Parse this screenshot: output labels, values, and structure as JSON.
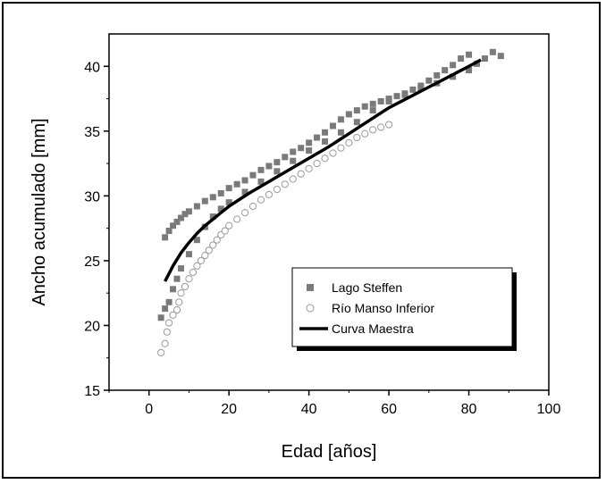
{
  "chart_data": {
    "type": "scatter",
    "title": "",
    "xlabel": "Edad [años]",
    "ylabel": "Ancho acumulado [mm]",
    "xlim": [
      -10,
      100
    ],
    "ylim": [
      15,
      42.5
    ],
    "xticks": [
      0,
      20,
      40,
      60,
      80,
      100
    ],
    "yticks": [
      15,
      20,
      25,
      30,
      35,
      40
    ],
    "grid": false,
    "legend_position": "lower-right",
    "series": [
      {
        "name": "Lago Steffen",
        "marker": "square",
        "color": "#7a7a7a",
        "points": [
          [
            3,
            20.6
          ],
          [
            4,
            21.3
          ],
          [
            5,
            21.8
          ],
          [
            6,
            22.8
          ],
          [
            7,
            23.6
          ],
          [
            8,
            24.4
          ],
          [
            4,
            26.8
          ],
          [
            5,
            27.3
          ],
          [
            6,
            27.7
          ],
          [
            7,
            28.0
          ],
          [
            8,
            28.3
          ],
          [
            9,
            28.6
          ],
          [
            10,
            28.8
          ],
          [
            12,
            29.2
          ],
          [
            14,
            29.6
          ],
          [
            16,
            29.9
          ],
          [
            18,
            30.2
          ],
          [
            20,
            30.6
          ],
          [
            22,
            30.9
          ],
          [
            24,
            31.2
          ],
          [
            26,
            31.6
          ],
          [
            28,
            32.0
          ],
          [
            30,
            32.3
          ],
          [
            32,
            32.6
          ],
          [
            34,
            33.0
          ],
          [
            36,
            33.4
          ],
          [
            38,
            33.7
          ],
          [
            40,
            34.1
          ],
          [
            42,
            34.5
          ],
          [
            44,
            34.9
          ],
          [
            46,
            35.4
          ],
          [
            48,
            35.9
          ],
          [
            50,
            36.3
          ],
          [
            52,
            36.6
          ],
          [
            54,
            36.9
          ],
          [
            56,
            37.1
          ],
          [
            58,
            37.3
          ],
          [
            60,
            37.5
          ],
          [
            62,
            37.7
          ],
          [
            64,
            37.9
          ],
          [
            66,
            38.2
          ],
          [
            68,
            38.5
          ],
          [
            70,
            38.9
          ],
          [
            72,
            39.3
          ],
          [
            74,
            39.7
          ],
          [
            76,
            40.1
          ],
          [
            78,
            40.6
          ],
          [
            80,
            40.9
          ],
          [
            10,
            25.5
          ],
          [
            12,
            26.6
          ],
          [
            14,
            27.6
          ],
          [
            16,
            28.4
          ],
          [
            18,
            29.0
          ],
          [
            20,
            29.5
          ],
          [
            24,
            30.3
          ],
          [
            28,
            31.1
          ],
          [
            32,
            31.9
          ],
          [
            36,
            32.7
          ],
          [
            40,
            33.5
          ],
          [
            44,
            34.2
          ],
          [
            48,
            34.9
          ],
          [
            52,
            35.7
          ],
          [
            56,
            36.6
          ],
          [
            60,
            37.3
          ],
          [
            64,
            37.8
          ],
          [
            68,
            38.3
          ],
          [
            72,
            38.7
          ],
          [
            76,
            39.2
          ],
          [
            80,
            39.7
          ],
          [
            82,
            40.2
          ],
          [
            84,
            40.6
          ],
          [
            86,
            41.1
          ],
          [
            88,
            40.8
          ]
        ]
      },
      {
        "name": "Río Manso Inferior",
        "marker": "circle",
        "color": "#9a9a9a",
        "points": [
          [
            3,
            17.9
          ],
          [
            4,
            18.6
          ],
          [
            4.5,
            19.5
          ],
          [
            5,
            20.2
          ],
          [
            6,
            20.8
          ],
          [
            7,
            21.2
          ],
          [
            7.5,
            21.8
          ],
          [
            8,
            22.5
          ],
          [
            9,
            23.0
          ],
          [
            10,
            23.6
          ],
          [
            11,
            24.1
          ],
          [
            12,
            24.6
          ],
          [
            13,
            25.0
          ],
          [
            14,
            25.4
          ],
          [
            15,
            25.8
          ],
          [
            16,
            26.2
          ],
          [
            17,
            26.6
          ],
          [
            18,
            27.0
          ],
          [
            19,
            27.3
          ],
          [
            20,
            27.7
          ],
          [
            22,
            28.2
          ],
          [
            24,
            28.7
          ],
          [
            26,
            29.2
          ],
          [
            28,
            29.7
          ],
          [
            30,
            30.1
          ],
          [
            32,
            30.5
          ],
          [
            34,
            30.9
          ],
          [
            36,
            31.3
          ],
          [
            38,
            31.7
          ],
          [
            40,
            32.1
          ],
          [
            42,
            32.5
          ],
          [
            44,
            32.9
          ],
          [
            46,
            33.3
          ],
          [
            48,
            33.7
          ],
          [
            50,
            34.1
          ],
          [
            52,
            34.5
          ],
          [
            54,
            34.8
          ],
          [
            56,
            35.1
          ],
          [
            58,
            35.3
          ],
          [
            60,
            35.5
          ]
        ]
      },
      {
        "name": "Curva Maestra",
        "marker": "line",
        "color": "#000000",
        "points": [
          [
            4,
            23.4
          ],
          [
            6,
            24.6
          ],
          [
            8,
            25.6
          ],
          [
            10,
            26.4
          ],
          [
            12,
            27.1
          ],
          [
            14,
            27.7
          ],
          [
            16,
            28.2
          ],
          [
            18,
            28.7
          ],
          [
            20,
            29.2
          ],
          [
            25,
            30.2
          ],
          [
            30,
            31.1
          ],
          [
            35,
            32.0
          ],
          [
            40,
            32.9
          ],
          [
            45,
            33.8
          ],
          [
            50,
            34.8
          ],
          [
            55,
            35.8
          ],
          [
            60,
            36.8
          ],
          [
            65,
            37.6
          ],
          [
            70,
            38.4
          ],
          [
            75,
            39.2
          ],
          [
            80,
            40.0
          ],
          [
            83,
            40.5
          ]
        ]
      }
    ]
  }
}
